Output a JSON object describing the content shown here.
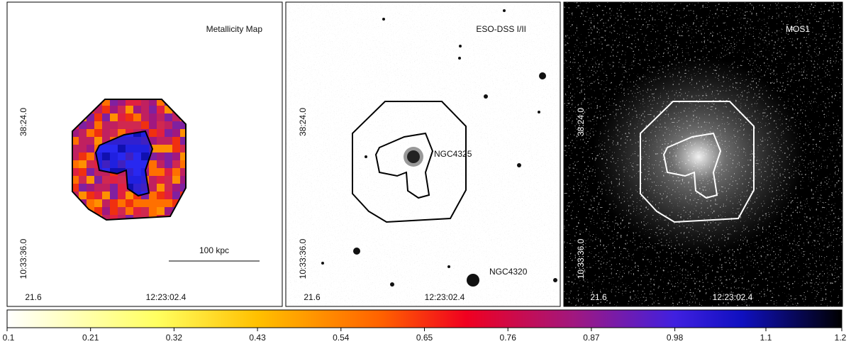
{
  "panels": [
    {
      "label": "Metallicity Map",
      "dec_ticks": [
        "38:24.0",
        "10:33:36.0"
      ],
      "ra_ticks": [
        "21.6",
        "12:23:02.4"
      ],
      "scale_bar": "100 kpc"
    },
    {
      "label": "ESO-DSS I/II",
      "dec_ticks": [
        "38:24.0",
        "10:33:36.0"
      ],
      "ra_ticks": [
        "21.6",
        "12:23:02.4"
      ],
      "annotations": [
        "NGC4325",
        "NGC4320"
      ]
    },
    {
      "label": "MOS1",
      "dec_ticks": [
        "38:24.0",
        "10:33:36.0"
      ],
      "ra_ticks": [
        "21.6",
        "12:23:02.4"
      ]
    }
  ],
  "colorbar": {
    "lim": [
      0.1,
      1.2
    ],
    "ticks": [
      0.1,
      0.21,
      0.32,
      0.43,
      0.54,
      0.65,
      0.76,
      0.87,
      0.98,
      1.1,
      1.2
    ]
  }
}
